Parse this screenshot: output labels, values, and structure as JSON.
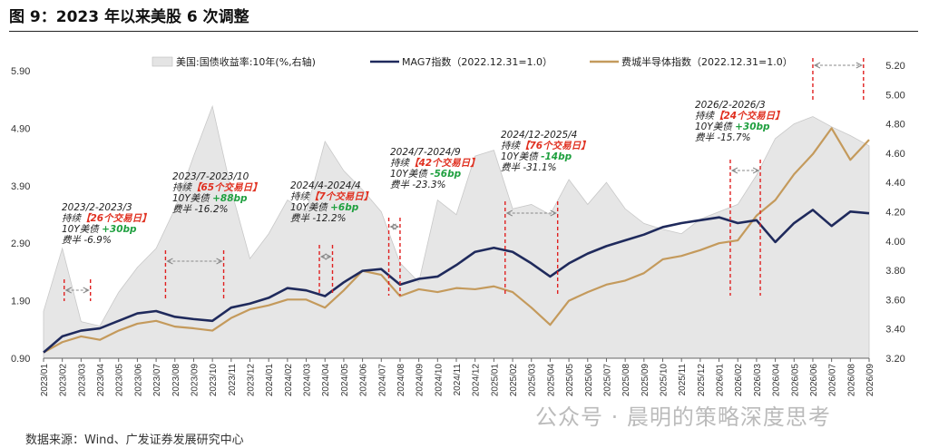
{
  "header": {
    "title": "图 9：2023 年以来美股 6 次调整",
    "source": "数据来源：Wind、广发证券发展研究中心",
    "watermark": "公众号 · 晨明的策略深度思考"
  },
  "chart_data": {
    "type": "line",
    "legend": [
      {
        "name": "美国:国债收益率:10年(%,右轴)",
        "kind": "area",
        "color": "#e4e4e4"
      },
      {
        "name": "MAG7指数（2022.12.31=1.0）",
        "kind": "line",
        "color": "#1f2a5c"
      },
      {
        "name": "费城半导体指数（2022.12.31=1.0）",
        "kind": "line",
        "color": "#c49a5c"
      }
    ],
    "x_categories": [
      "2023/01",
      "2023/02",
      "2023/03",
      "2023/04",
      "2023/05",
      "2023/06",
      "2023/07",
      "2023/08",
      "2023/09",
      "2023/10",
      "2023/11",
      "2023/12",
      "2024/01",
      "2024/02",
      "2024/03",
      "2024/04",
      "2024/05",
      "2024/06",
      "2024/07",
      "2024/08",
      "2024/09",
      "2024/10",
      "2024/11",
      "2024/12",
      "2025/01",
      "2025/02",
      "2025/03",
      "2025/04",
      "2025/05",
      "2025/06",
      "2025/07",
      "2025/08",
      "2025/09",
      "2025/10",
      "2025/11",
      "2025/12",
      "2026/01",
      "2026/02",
      "2026/03",
      "2026/04",
      "2026/05",
      "2026/06",
      "2026/07",
      "2026/08",
      "2026/09"
    ],
    "y_left": {
      "ticks": [
        "5.90",
        "4.90",
        "3.90",
        "2.90",
        "1.90",
        "0.90"
      ],
      "min": 0.9,
      "max": 5.9
    },
    "y_right": {
      "ticks": [
        "5.20",
        "5.00",
        "4.80",
        "4.60",
        "4.40",
        "4.20",
        "4.00",
        "3.80",
        "3.60",
        "3.40",
        "3.20"
      ],
      "min": 3.2,
      "max": 5.2
    },
    "series": [
      {
        "name": "美国:国债收益率:10年(%,右轴)",
        "axis": "right",
        "values": [
          3.52,
          3.95,
          3.45,
          3.42,
          3.65,
          3.82,
          3.95,
          4.22,
          4.58,
          4.92,
          4.35,
          3.88,
          4.05,
          4.28,
          4.2,
          4.68,
          4.48,
          4.35,
          4.2,
          3.85,
          3.72,
          4.28,
          4.18,
          4.58,
          4.62,
          4.22,
          4.25,
          4.18,
          4.42,
          4.25,
          4.4,
          4.22,
          4.12,
          4.08,
          4.05,
          4.15,
          4.2,
          4.25,
          4.45,
          4.7,
          4.8,
          4.85,
          4.78,
          4.72,
          4.65
        ]
      },
      {
        "name": "MAG7指数（2022.12.31=1.0）",
        "axis": "left",
        "values": [
          1.0,
          1.28,
          1.38,
          1.42,
          1.55,
          1.68,
          1.72,
          1.62,
          1.58,
          1.55,
          1.78,
          1.85,
          1.95,
          2.12,
          2.08,
          1.98,
          2.22,
          2.42,
          2.45,
          2.18,
          2.28,
          2.32,
          2.52,
          2.75,
          2.82,
          2.75,
          2.55,
          2.32,
          2.55,
          2.72,
          2.85,
          2.95,
          3.05,
          3.18,
          3.25,
          3.3,
          3.35,
          3.25,
          3.3,
          2.92,
          3.25,
          3.48,
          3.2,
          3.45,
          3.42
        ]
      },
      {
        "name": "费城半导体指数（2022.12.31=1.0）",
        "axis": "left",
        "values": [
          1.0,
          1.18,
          1.28,
          1.22,
          1.38,
          1.5,
          1.55,
          1.45,
          1.42,
          1.38,
          1.6,
          1.75,
          1.82,
          1.92,
          1.92,
          1.78,
          2.08,
          2.42,
          2.35,
          1.98,
          2.1,
          2.05,
          2.12,
          2.1,
          2.15,
          2.05,
          1.78,
          1.48,
          1.9,
          2.05,
          2.18,
          2.25,
          2.38,
          2.62,
          2.68,
          2.78,
          2.9,
          2.95,
          3.38,
          3.65,
          4.1,
          4.45,
          4.9,
          4.35,
          4.7
        ]
      }
    ],
    "annotations": [
      {
        "period": "2023/2-2023/3",
        "days_pre": "持续",
        "days": "【26个交易日】",
        "bond_label": "10Y美债",
        "bond": "+30bp",
        "semi": "费半 -6.9%",
        "bond_positive": true,
        "idx_from": 1.1,
        "idx_to": 2.5
      },
      {
        "period": "2023/7-2023/10",
        "days_pre": "持续",
        "days": "【65个交易日】",
        "bond_label": "10Y美债",
        "bond": "+88bp",
        "semi": "费半 -16.2%",
        "bond_positive": true,
        "idx_from": 6.5,
        "idx_to": 9.6
      },
      {
        "period": "2024/4-2024/4",
        "days_pre": "持续",
        "days": "【7个交易日】",
        "bond_label": "10Y美债",
        "bond": "+6bp",
        "semi": "费半 -12.2%",
        "bond_positive": true,
        "idx_from": 14.7,
        "idx_to": 15.4
      },
      {
        "period": "2024/7-2024/9",
        "days_pre": "持续",
        "days": "【42个交易日】",
        "bond_label": "10Y美债",
        "bond": "-56bp",
        "semi": "费半 -23.3%",
        "bond_positive": false,
        "idx_from": 18.4,
        "idx_to": 19.0
      },
      {
        "period": "2024/12-2025/4",
        "days_pre": "持续",
        "days": "【76个交易日】",
        "bond_label": "10Y美债",
        "bond": "-14bp",
        "semi": "费半 -31.1%",
        "bond_positive": false,
        "idx_from": 24.6,
        "idx_to": 27.4
      },
      {
        "period": "2026/2-2026/3",
        "days_pre": "持续",
        "days": "【24个交易日】",
        "bond_label": "10Y美债",
        "bond": "+30bp",
        "semi": "费半 -15.7%",
        "bond_positive": true,
        "idx_from": 36.6,
        "idx_to": 38.2
      },
      {
        "period": "",
        "days_pre": "",
        "days": "",
        "bond_label": "",
        "bond": "",
        "semi": "",
        "bond_positive": true,
        "idx_from": 41.0,
        "idx_to": 43.7
      }
    ]
  }
}
